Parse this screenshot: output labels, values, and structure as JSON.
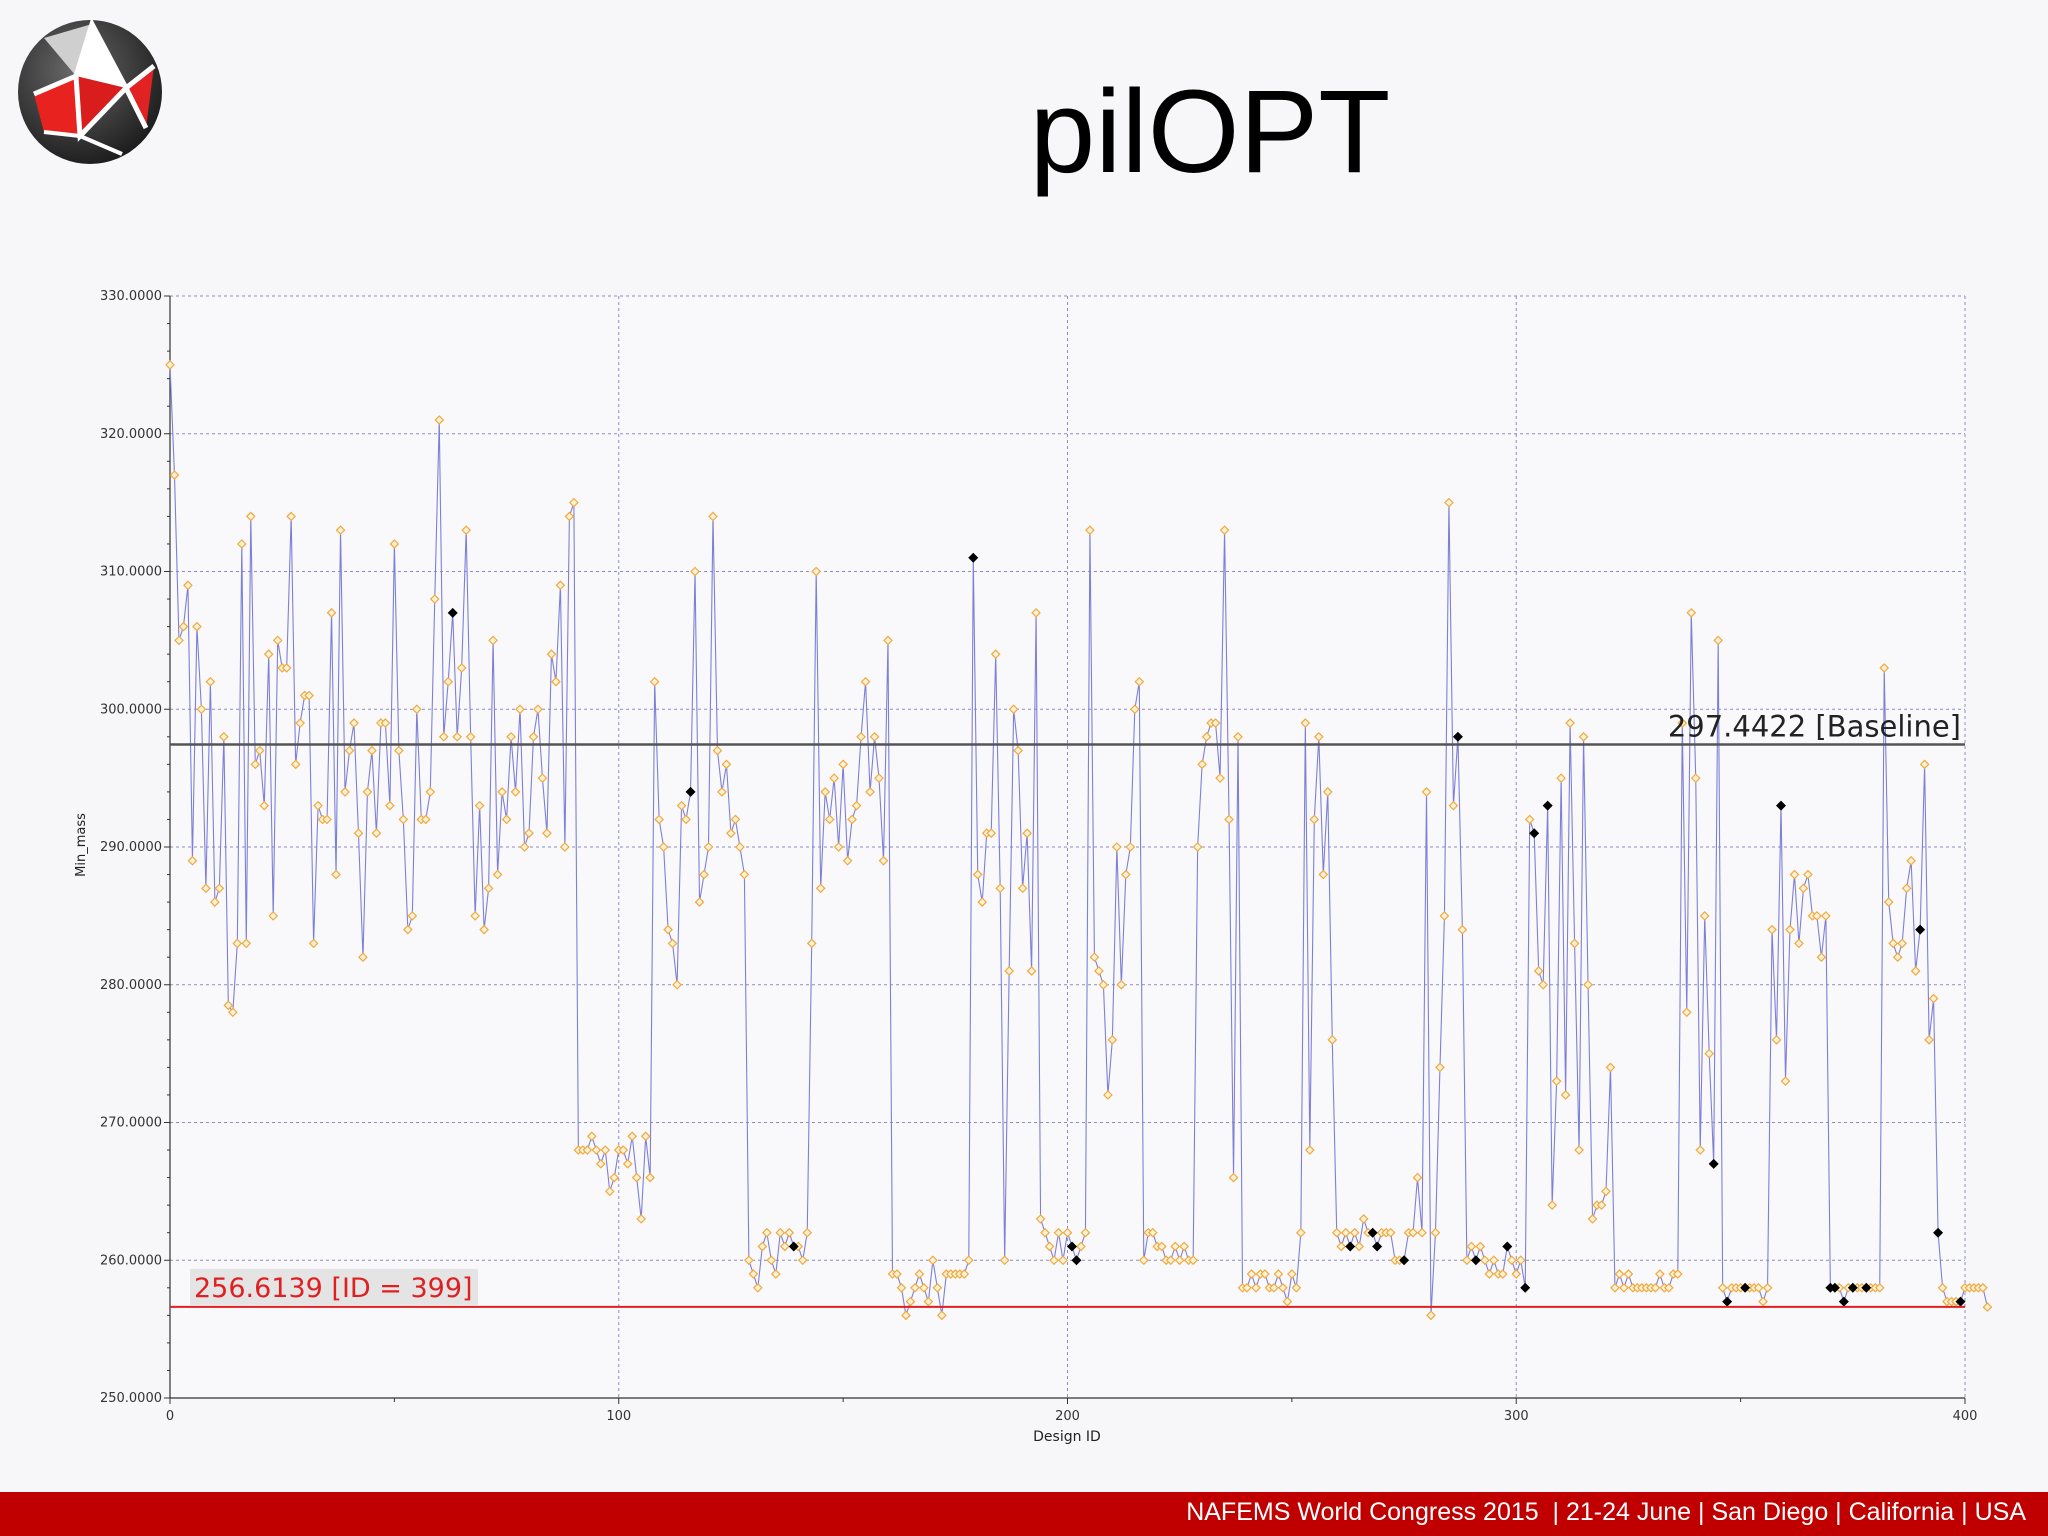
{
  "slide": {
    "title": "pilOPT",
    "footer": "NAFEMS World Congress 2015  | 21-24 June | San Diego | California | USA",
    "logo_icon": "geodesic-sphere-logo",
    "footer_color": "#c00000"
  },
  "chart_data": {
    "type": "scatter",
    "xlabel": "Design ID",
    "ylabel": "Min_mass",
    "xlim": [
      0,
      400
    ],
    "ylim": [
      250,
      330
    ],
    "x_ticks": [
      0,
      100,
      200,
      300,
      400
    ],
    "y_ticks": [
      250,
      260,
      270,
      280,
      290,
      300,
      310,
      320,
      330
    ],
    "y_tick_labels": [
      "250.0000",
      "260.0000",
      "270.0000",
      "280.0000",
      "290.0000",
      "300.0000",
      "310.0000",
      "320.0000",
      "330.0000"
    ],
    "grid": true,
    "line_color": "#7f7fd6",
    "point_color": "#f0a840",
    "pareto_color": "#000000",
    "reference_lines": [
      {
        "name": "baseline",
        "y": 297.4422,
        "label": "297.4422 [Baseline]",
        "color": "#555555"
      },
      {
        "name": "best",
        "y": 256.6139,
        "label": "256.6139 [ID = 399]",
        "color": "#e02020"
      }
    ],
    "series": [
      {
        "values": [
          325,
          317,
          305,
          306,
          309,
          289,
          306,
          300,
          287,
          302,
          286,
          287,
          298,
          278.5,
          278,
          283,
          312,
          283,
          314,
          296,
          297,
          293,
          304,
          285,
          305,
          303,
          303,
          314,
          296,
          299,
          301,
          301,
          283,
          293,
          292,
          292,
          307,
          288,
          313,
          294,
          297,
          299,
          291,
          282,
          294,
          297,
          291,
          299,
          299,
          293,
          312,
          297,
          292,
          284,
          285,
          300,
          292,
          292,
          294,
          308,
          321,
          298,
          302,
          307,
          298,
          303,
          313,
          298,
          285,
          293,
          284,
          287,
          305,
          288,
          294,
          292,
          298,
          294,
          300,
          290,
          291,
          298,
          300,
          295,
          291,
          304,
          302,
          309,
          290,
          314,
          315,
          268,
          268,
          268,
          269,
          268,
          267,
          268,
          265,
          266,
          268,
          268,
          267,
          269,
          266,
          263,
          269,
          266,
          302,
          292,
          290,
          284,
          283,
          280,
          293,
          292,
          294,
          310,
          286,
          288,
          290,
          314,
          297,
          294,
          296,
          291,
          292,
          290,
          288,
          260,
          259,
          258,
          261,
          262,
          260,
          259,
          262,
          261,
          262,
          261,
          261,
          260,
          262,
          283,
          310,
          287,
          294,
          292,
          295,
          290,
          296,
          289,
          292,
          293,
          298,
          302,
          294,
          298,
          295,
          289,
          305,
          259,
          259,
          258,
          256,
          257,
          258,
          259,
          258,
          257,
          260,
          258,
          256,
          259,
          259,
          259,
          259,
          259,
          260,
          311,
          288,
          286,
          291,
          291,
          304,
          287,
          260,
          281,
          300,
          297,
          287,
          291,
          281,
          307,
          263,
          262,
          261,
          260,
          262,
          260,
          262,
          261,
          260,
          261,
          262,
          313,
          282,
          281,
          280,
          272,
          276,
          290,
          280,
          288,
          290,
          300,
          302,
          260,
          262,
          262,
          261,
          261,
          260,
          260,
          261,
          260,
          261,
          260,
          260,
          290,
          296,
          298,
          299,
          299,
          295,
          313,
          292,
          266,
          298,
          258,
          258,
          259,
          258,
          259,
          259,
          258,
          258,
          259,
          258,
          257,
          259,
          258,
          262,
          299,
          268,
          292,
          298,
          288,
          294,
          276,
          262,
          261,
          262,
          261,
          262,
          261,
          263,
          262,
          262,
          261,
          262,
          262,
          262,
          260,
          260,
          260,
          262,
          262,
          266,
          262,
          294,
          256,
          262,
          274,
          285,
          315,
          293,
          298,
          284,
          260,
          261,
          260,
          261,
          260,
          259,
          260,
          259,
          259,
          261,
          260,
          259,
          260,
          258,
          292,
          291,
          281,
          280,
          293,
          264,
          273,
          295,
          272,
          299,
          283,
          268,
          298,
          280,
          263,
          264,
          264,
          265,
          274,
          258,
          259,
          258,
          259,
          258,
          258,
          258,
          258,
          258,
          258,
          259,
          258,
          258,
          259,
          259,
          299,
          278,
          307,
          295,
          268,
          285,
          275,
          267,
          305,
          258,
          257,
          258,
          258,
          258,
          258,
          258,
          258,
          258,
          257,
          258,
          284,
          276,
          293,
          273,
          284,
          288,
          283,
          287,
          288,
          285,
          285,
          282,
          285,
          258,
          258,
          258,
          257,
          258,
          258,
          258,
          258,
          258,
          258,
          258,
          258,
          303,
          286,
          283,
          282,
          283,
          287,
          289,
          281,
          284,
          296,
          276,
          279,
          262,
          258,
          257,
          257,
          257,
          257,
          258,
          258,
          258,
          258,
          258,
          256.6
        ],
        "pareto_ids": [
          63,
          116,
          139,
          179,
          201,
          202,
          263,
          268,
          269,
          275,
          287,
          291,
          298,
          302,
          304,
          307,
          344,
          347,
          351,
          359,
          370,
          371,
          373,
          375,
          378,
          390,
          394,
          399
        ]
      }
    ]
  }
}
